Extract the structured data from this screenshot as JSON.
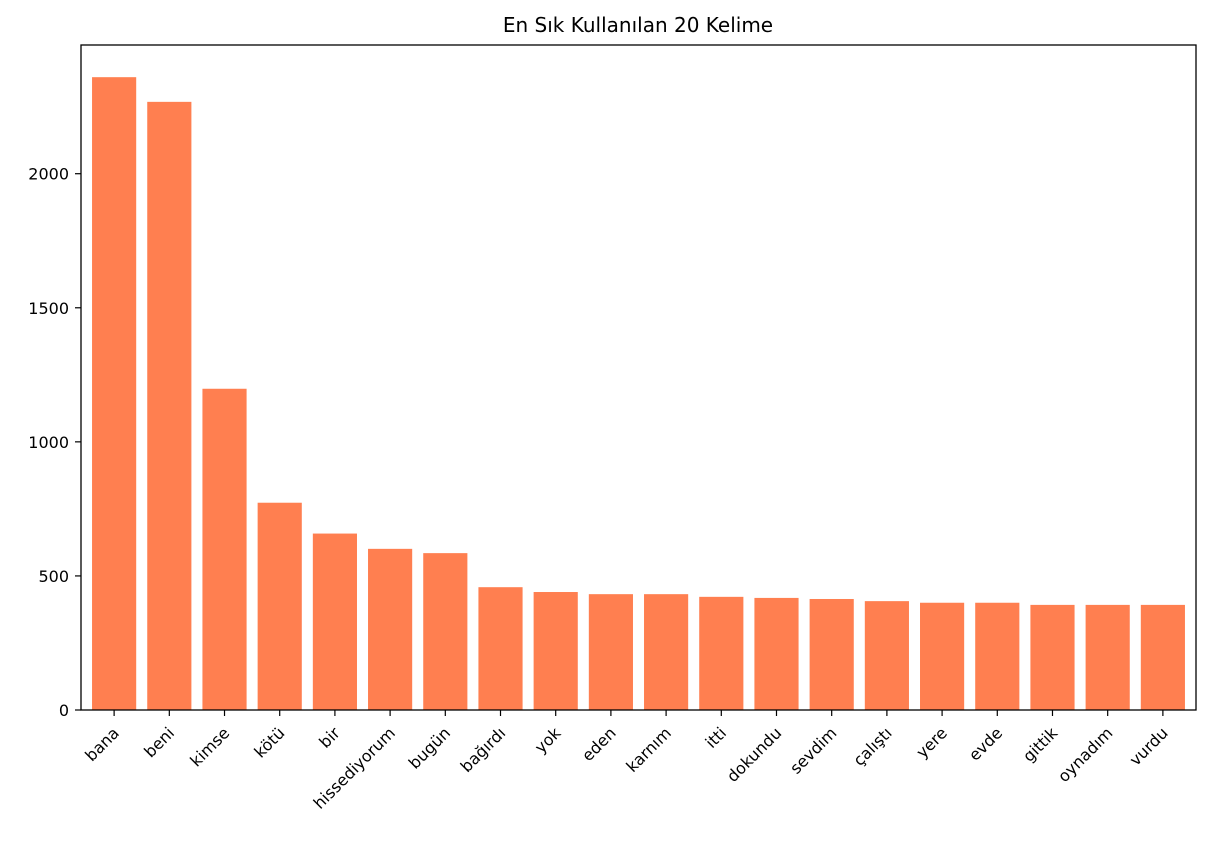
{
  "chart_data": {
    "type": "bar",
    "title": "En Sık Kullanılan 20 Kelime",
    "xlabel": "",
    "ylabel": "",
    "categories": [
      "bana",
      "beni",
      "kimse",
      "kötü",
      "bir",
      "hissediyorum",
      "bugün",
      "bağırdı",
      "yok",
      "eden",
      "karnım",
      "itti",
      "dokundu",
      "sevdim",
      "çalıştı",
      "yere",
      "evde",
      "gittik",
      "oynadım",
      "vurdu"
    ],
    "values": [
      2360,
      2268,
      1198,
      773,
      658,
      601,
      585,
      458,
      440,
      432,
      432,
      422,
      418,
      414,
      406,
      400,
      400,
      392,
      392,
      392
    ],
    "ylim": [
      0,
      2480
    ],
    "yticks": [
      0,
      500,
      1000,
      1500,
      2000
    ],
    "bar_color": "#ff7f50",
    "grid": false,
    "legend": "none"
  }
}
